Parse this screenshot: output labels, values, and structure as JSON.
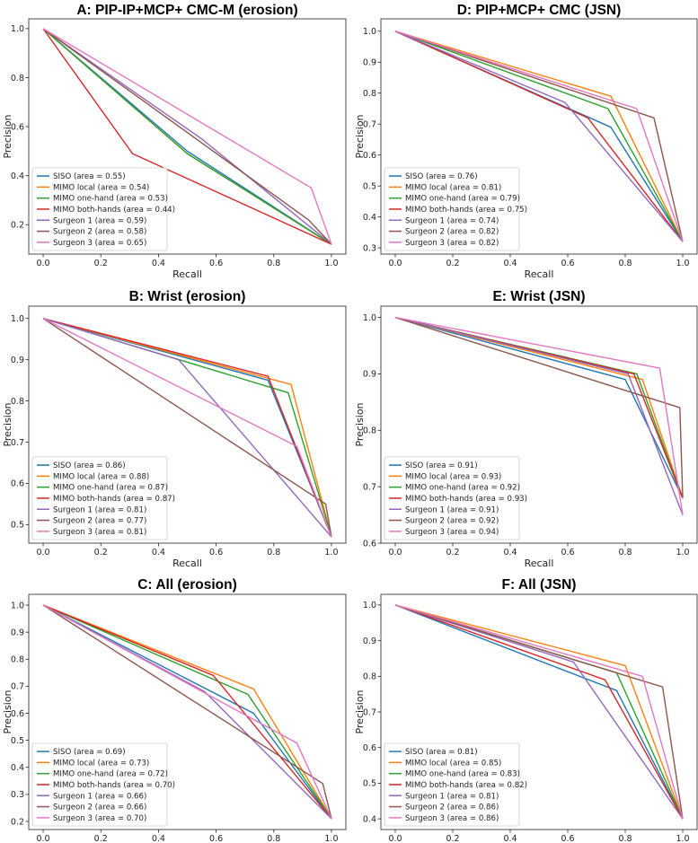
{
  "series_colors": [
    "#1f77b4",
    "#ff7f0e",
    "#2ca02c",
    "#d62728",
    "#9467bd",
    "#8c564b",
    "#e377c2"
  ],
  "chart_data": [
    {
      "type": "line",
      "title": "A: PIP-IP+MCP+ CMC-M (erosion)",
      "xlabel": "Recall",
      "ylabel": "Precision",
      "xlim": [
        -0.05,
        1.05
      ],
      "ylim": [
        0.08,
        1.04
      ],
      "xticks": [
        "0.0",
        "0.2",
        "0.4",
        "0.6",
        "0.8",
        "1.0"
      ],
      "yticks": [
        "0.2",
        "0.4",
        "0.6",
        "0.8",
        "1.0"
      ],
      "legend_position": "lower-left",
      "series": [
        {
          "name": "SISO (area = 0.55)",
          "x": [
            0,
            0.5,
            1
          ],
          "y": [
            1,
            0.5,
            0.12
          ]
        },
        {
          "name": "MIMO local (area = 0.54)",
          "x": [
            0,
            0.5,
            1
          ],
          "y": [
            1,
            0.49,
            0.12
          ]
        },
        {
          "name": "MIMO one-hand (area = 0.53)",
          "x": [
            0,
            0.5,
            1
          ],
          "y": [
            1,
            0.49,
            0.12
          ]
        },
        {
          "name": "MIMO both-hands (area = 0.44)",
          "x": [
            0,
            0.31,
            1
          ],
          "y": [
            1,
            0.49,
            0.12
          ]
        },
        {
          "name": "Surgeon 1 (area = 0.59)",
          "x": [
            0,
            0.55,
            1
          ],
          "y": [
            1,
            0.55,
            0.12
          ]
        },
        {
          "name": "Surgeon 2 (area = 0.58)",
          "x": [
            0,
            0.92,
            1
          ],
          "y": [
            1,
            0.22,
            0.12
          ]
        },
        {
          "name": "Surgeon 3 (area = 0.65)",
          "x": [
            0,
            0.93,
            1
          ],
          "y": [
            1,
            0.35,
            0.12
          ]
        }
      ]
    },
    {
      "type": "line",
      "title": "D: PIP+MCP+ CMC (JSN)",
      "xlabel": "Recall",
      "ylabel": "Precision",
      "xlim": [
        -0.05,
        1.05
      ],
      "ylim": [
        0.28,
        1.04
      ],
      "xticks": [
        "0.0",
        "0.2",
        "0.4",
        "0.6",
        "0.8",
        "1.0"
      ],
      "yticks": [
        "0.3",
        "0.4",
        "0.5",
        "0.6",
        "0.7",
        "0.8",
        "0.9",
        "1.0"
      ],
      "legend_position": "lower-left",
      "series": [
        {
          "name": "SISO (area = 0.76)",
          "x": [
            0,
            0.75,
            1
          ],
          "y": [
            1,
            0.69,
            0.32
          ]
        },
        {
          "name": "MIMO local (area = 0.81)",
          "x": [
            0,
            0.75,
            1
          ],
          "y": [
            1,
            0.79,
            0.32
          ]
        },
        {
          "name": "MIMO one-hand (area = 0.79)",
          "x": [
            0,
            0.74,
            1
          ],
          "y": [
            1,
            0.75,
            0.32
          ]
        },
        {
          "name": "MIMO both-hands (area = 0.75)",
          "x": [
            0,
            0.67,
            1
          ],
          "y": [
            1,
            0.72,
            0.32
          ]
        },
        {
          "name": "Surgeon 1 (area = 0.74)",
          "x": [
            0,
            0.59,
            1
          ],
          "y": [
            1,
            0.77,
            0.32
          ]
        },
        {
          "name": "Surgeon 2 (area = 0.82)",
          "x": [
            0,
            0.9,
            1
          ],
          "y": [
            1,
            0.72,
            0.32
          ]
        },
        {
          "name": "Surgeon 3 (area = 0.82)",
          "x": [
            0,
            0.84,
            1
          ],
          "y": [
            1,
            0.75,
            0.32
          ]
        }
      ]
    },
    {
      "type": "line",
      "title": "B: Wrist (erosion)",
      "xlabel": "Recall",
      "ylabel": "Precision",
      "xlim": [
        -0.05,
        1.05
      ],
      "ylim": [
        0.455,
        1.03
      ],
      "xticks": [
        "0.0",
        "0.2",
        "0.4",
        "0.6",
        "0.8",
        "1.0"
      ],
      "yticks": [
        "0.5",
        "0.6",
        "0.7",
        "0.8",
        "0.9",
        "1.0"
      ],
      "legend_position": "lower-left",
      "series": [
        {
          "name": "SISO (area = 0.86)",
          "x": [
            0,
            0.78,
            1
          ],
          "y": [
            1,
            0.85,
            0.47
          ]
        },
        {
          "name": "MIMO local (area = 0.88)",
          "x": [
            0,
            0.86,
            1
          ],
          "y": [
            1,
            0.84,
            0.47
          ]
        },
        {
          "name": "MIMO one-hand (area = 0.87)",
          "x": [
            0,
            0.85,
            1
          ],
          "y": [
            1,
            0.82,
            0.47
          ]
        },
        {
          "name": "MIMO both-hands (area = 0.87)",
          "x": [
            0,
            0.78,
            1
          ],
          "y": [
            1,
            0.86,
            0.47
          ]
        },
        {
          "name": "Surgeon 1 (area = 0.81)",
          "x": [
            0,
            0.47,
            1
          ],
          "y": [
            1,
            0.9,
            0.47
          ]
        },
        {
          "name": "Surgeon 2 (area = 0.77)",
          "x": [
            0,
            0.98,
            1
          ],
          "y": [
            1,
            0.55,
            0.47
          ]
        },
        {
          "name": "Surgeon 3 (area = 0.81)",
          "x": [
            0,
            0.88,
            1
          ],
          "y": [
            1,
            0.69,
            0.47
          ]
        }
      ]
    },
    {
      "type": "line",
      "title": "E: Wrist (JSN)",
      "xlabel": "Recall",
      "ylabel": "Precision",
      "xlim": [
        -0.05,
        1.05
      ],
      "ylim": [
        0.6,
        1.02
      ],
      "xticks": [
        "0.0",
        "0.2",
        "0.4",
        "0.6",
        "0.8",
        "1.0"
      ],
      "yticks": [
        "0.6",
        "0.7",
        "0.8",
        "0.9",
        "1.0"
      ],
      "legend_position": "lower-left",
      "series": [
        {
          "name": "SISO (area = 0.91)",
          "x": [
            0,
            0.8,
            1
          ],
          "y": [
            1,
            0.89,
            0.68
          ]
        },
        {
          "name": "MIMO local (area = 0.93)",
          "x": [
            0,
            0.86,
            1
          ],
          "y": [
            1,
            0.89,
            0.68
          ]
        },
        {
          "name": "MIMO one-hand (area = 0.92)",
          "x": [
            0,
            0.84,
            1
          ],
          "y": [
            1,
            0.9,
            0.68
          ]
        },
        {
          "name": "MIMO both-hands (area = 0.93)",
          "x": [
            0,
            0.83,
            1
          ],
          "y": [
            1,
            0.9,
            0.68
          ]
        },
        {
          "name": "Surgeon 1 (area = 0.91)",
          "x": [
            0,
            0.81,
            1
          ],
          "y": [
            1,
            0.9,
            0.65
          ]
        },
        {
          "name": "Surgeon 2 (area = 0.92)",
          "x": [
            0,
            0.99,
            1
          ],
          "y": [
            1,
            0.84,
            0.68
          ]
        },
        {
          "name": "Surgeon 3 (area = 0.94)",
          "x": [
            0,
            0.92,
            1
          ],
          "y": [
            1,
            0.91,
            0.65
          ]
        }
      ]
    },
    {
      "type": "line",
      "title": "C: All (erosion)",
      "xlabel": "Recall",
      "ylabel": "Precision",
      "xlim": [
        -0.05,
        1.05
      ],
      "ylim": [
        0.17,
        1.04
      ],
      "xticks": [
        "0.0",
        "0.2",
        "0.4",
        "0.6",
        "0.8",
        "1.0"
      ],
      "yticks": [
        "0.2",
        "0.3",
        "0.4",
        "0.5",
        "0.6",
        "0.7",
        "0.8",
        "0.9",
        "1.0"
      ],
      "legend_position": "lower-left",
      "series": [
        {
          "name": "SISO (area = 0.69)",
          "x": [
            0,
            0.73,
            1
          ],
          "y": [
            1,
            0.6,
            0.21
          ]
        },
        {
          "name": "MIMO local (area = 0.73)",
          "x": [
            0,
            0.73,
            1
          ],
          "y": [
            1,
            0.69,
            0.21
          ]
        },
        {
          "name": "MIMO one-hand (area = 0.72)",
          "x": [
            0,
            0.71,
            1
          ],
          "y": [
            1,
            0.67,
            0.21
          ]
        },
        {
          "name": "MIMO both-hands (area = 0.70)",
          "x": [
            0,
            0.59,
            1
          ],
          "y": [
            1,
            0.74,
            0.21
          ]
        },
        {
          "name": "Surgeon 1 (area = 0.66)",
          "x": [
            0,
            0.56,
            1
          ],
          "y": [
            1,
            0.68,
            0.21
          ]
        },
        {
          "name": "Surgeon 2 (area = 0.66)",
          "x": [
            0,
            0.97,
            1
          ],
          "y": [
            1,
            0.34,
            0.21
          ]
        },
        {
          "name": "Surgeon 3 (area = 0.70)",
          "x": [
            0,
            0.88,
            1
          ],
          "y": [
            1,
            0.49,
            0.21
          ]
        }
      ]
    },
    {
      "type": "line",
      "title": "F: All (JSN)",
      "xlabel": "Recall",
      "ylabel": "Precision",
      "xlim": [
        -0.05,
        1.05
      ],
      "ylim": [
        0.37,
        1.03
      ],
      "xticks": [
        "0.0",
        "0.2",
        "0.4",
        "0.6",
        "0.8",
        "1.0"
      ],
      "yticks": [
        "0.4",
        "0.5",
        "0.6",
        "0.7",
        "0.8",
        "0.9",
        "1.0"
      ],
      "legend_position": "lower-left",
      "series": [
        {
          "name": "SISO (area = 0.81)",
          "x": [
            0,
            0.77,
            1
          ],
          "y": [
            1,
            0.76,
            0.4
          ]
        },
        {
          "name": "MIMO local (area = 0.85)",
          "x": [
            0,
            0.8,
            1
          ],
          "y": [
            1,
            0.83,
            0.4
          ]
        },
        {
          "name": "MIMO one-hand (area = 0.83)",
          "x": [
            0,
            0.77,
            1
          ],
          "y": [
            1,
            0.81,
            0.4
          ]
        },
        {
          "name": "MIMO both-hands (area = 0.82)",
          "x": [
            0,
            0.73,
            1
          ],
          "y": [
            1,
            0.79,
            0.4
          ]
        },
        {
          "name": "Surgeon 1 (area = 0.81)",
          "x": [
            0,
            0.62,
            1
          ],
          "y": [
            1,
            0.84,
            0.4
          ]
        },
        {
          "name": "Surgeon 2 (area = 0.86)",
          "x": [
            0,
            0.93,
            1
          ],
          "y": [
            1,
            0.77,
            0.4
          ]
        },
        {
          "name": "Surgeon 3 (area = 0.86)",
          "x": [
            0,
            0.86,
            1
          ],
          "y": [
            1,
            0.8,
            0.4
          ]
        }
      ]
    }
  ]
}
